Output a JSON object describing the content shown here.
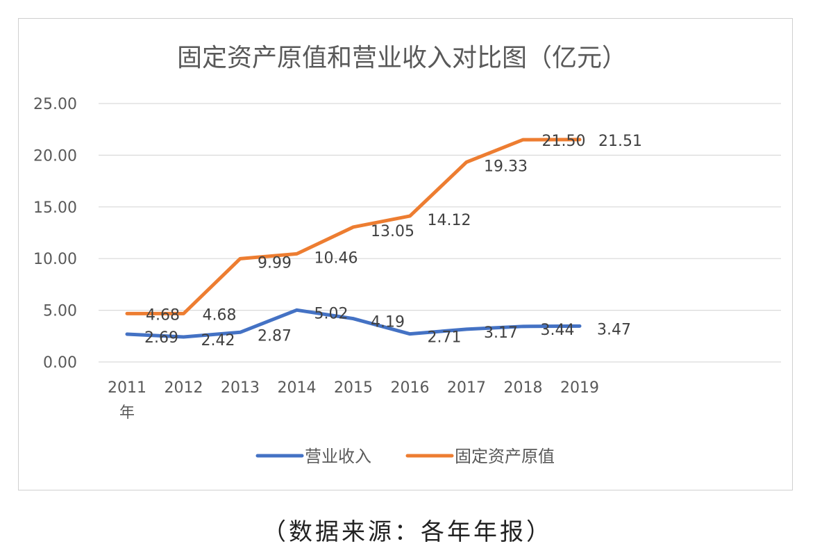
{
  "chart_data": {
    "type": "line",
    "title": "固定资产原值和营业收入对比图（亿元）",
    "categories": [
      "2011",
      "2012",
      "2013",
      "2014",
      "2015",
      "2016",
      "2017",
      "2018",
      "2019"
    ],
    "first_category_suffix": "年",
    "ylim": [
      0,
      25
    ],
    "yticks": [
      "0.00",
      "5.00",
      "10.00",
      "15.00",
      "20.00",
      "25.00"
    ],
    "grid": true,
    "legend_position": "bottom",
    "series": [
      {
        "name": "营业收入",
        "color": "#4472c4",
        "values": [
          2.69,
          2.42,
          2.87,
          5.02,
          4.19,
          2.71,
          3.17,
          3.44,
          3.47
        ],
        "labels": [
          "2.69",
          "2.42",
          "2.87",
          "5.02",
          "4.19",
          "2.71",
          "3.17",
          "3.44",
          "3.47"
        ]
      },
      {
        "name": "固定资产原值",
        "color": "#ed7d31",
        "values": [
          4.68,
          4.68,
          9.99,
          10.46,
          13.05,
          14.12,
          19.33,
          21.5,
          21.51
        ],
        "labels": [
          "4.68",
          "4.68",
          "9.99",
          "10.46",
          "13.05",
          "14.12",
          "19.33",
          "21.50",
          "21.51"
        ]
      }
    ]
  },
  "source_note": "（数据来源：各年年报）"
}
